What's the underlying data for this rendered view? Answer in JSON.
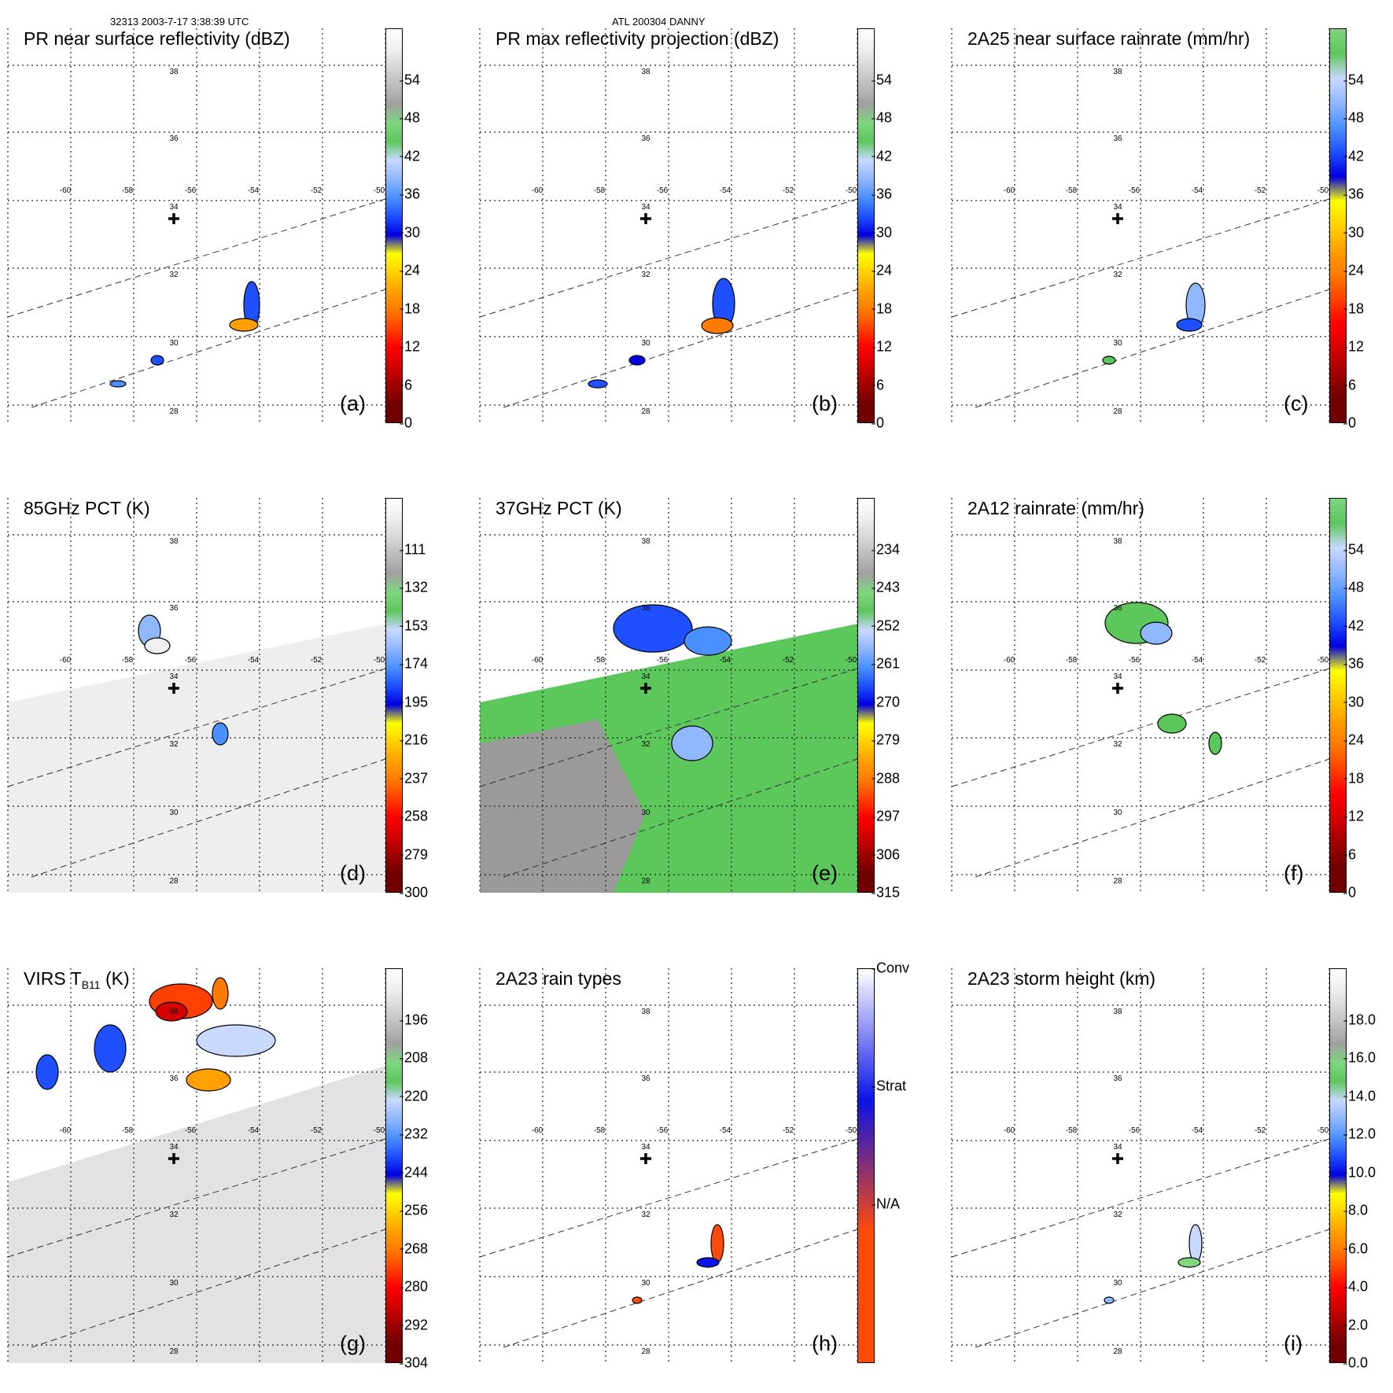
{
  "header": {
    "orbit_time": "32313 2003-7-17 3:38:39 UTC",
    "storm": "ATL 200304 DANNY"
  },
  "map": {
    "lon_labels": [
      "-60",
      "-58",
      "-56",
      "-54",
      "-52",
      "-50"
    ],
    "lat_labels": [
      "38",
      "36",
      "34",
      "32",
      "30",
      "28"
    ]
  },
  "panels": [
    {
      "label": "(a)",
      "title": "PR near surface reflectivity (dBZ)",
      "colorbar_ticks": [
        "54",
        "48",
        "42",
        "36",
        "30",
        "24",
        "18",
        "12",
        "6",
        "0"
      ],
      "colors": [
        "#ffffff",
        "#f0f0f0",
        "#d8d8d8",
        "#bdbdbd",
        "#a0a0a0",
        "#7fd67f",
        "#5cc85c",
        "#c8d8ff",
        "#8fb8ff",
        "#4a90ff",
        "#1e50ff",
        "#0000e0",
        "#ffff00",
        "#ffd000",
        "#ffa000",
        "#ff7a00",
        "#ff4000",
        "#ff0000",
        "#d40000",
        "#a00000",
        "#700000"
      ]
    },
    {
      "label": "(b)",
      "title": "PR max reflectivity projection (dBZ)",
      "colorbar_ticks": [
        "54",
        "48",
        "42",
        "36",
        "30",
        "24",
        "18",
        "12",
        "6",
        "0"
      ],
      "colors": [
        "#ffffff",
        "#f0f0f0",
        "#d8d8d8",
        "#bdbdbd",
        "#a0a0a0",
        "#7fd67f",
        "#5cc85c",
        "#c8d8ff",
        "#8fb8ff",
        "#4a90ff",
        "#1e50ff",
        "#0000e0",
        "#ffff00",
        "#ffd000",
        "#ffa000",
        "#ff7a00",
        "#ff4000",
        "#ff0000",
        "#d40000",
        "#a00000",
        "#700000"
      ]
    },
    {
      "label": "(c)",
      "title": "2A25 near surface rainrate (mm/hr)",
      "colorbar_ticks": [
        "54",
        "48",
        "42",
        "36",
        "30",
        "24",
        "18",
        "12",
        "6",
        "0"
      ],
      "colors": [
        "#7fd67f",
        "#5cc85c",
        "#c8d8ff",
        "#8fb8ff",
        "#4a90ff",
        "#1e50ff",
        "#0000e0",
        "#ffff00",
        "#ffd000",
        "#ffa000",
        "#ff7a00",
        "#ff4000",
        "#ff0000",
        "#d40000",
        "#a00000",
        "#700000"
      ]
    },
    {
      "label": "(d)",
      "title": "85GHz PCT (K)",
      "colorbar_ticks": [
        "111",
        "132",
        "153",
        "174",
        "195",
        "216",
        "237",
        "258",
        "279",
        "300"
      ],
      "colors": [
        "#ffffff",
        "#f0f0f0",
        "#d8d8d8",
        "#bdbdbd",
        "#a0a0a0",
        "#7fd67f",
        "#5cc85c",
        "#c8d8ff",
        "#8fb8ff",
        "#4a90ff",
        "#1e50ff",
        "#0000e0",
        "#ffff00",
        "#ffd000",
        "#ffa000",
        "#ff7a00",
        "#ff4000",
        "#ff0000",
        "#d40000",
        "#a00000",
        "#700000"
      ]
    },
    {
      "label": "(e)",
      "title": "37GHz PCT (K)",
      "colorbar_ticks": [
        "234",
        "243",
        "252",
        "261",
        "270",
        "279",
        "288",
        "297",
        "306",
        "315"
      ],
      "colors": [
        "#ffffff",
        "#f0f0f0",
        "#d8d8d8",
        "#bdbdbd",
        "#a0a0a0",
        "#7fd67f",
        "#5cc85c",
        "#c8d8ff",
        "#8fb8ff",
        "#4a90ff",
        "#1e50ff",
        "#0000e0",
        "#ffff00",
        "#ffd000",
        "#ffa000",
        "#ff7a00",
        "#ff4000",
        "#ff0000",
        "#d40000",
        "#a00000",
        "#700000"
      ]
    },
    {
      "label": "(f)",
      "title": "2A12 rainrate (mm/hr)",
      "colorbar_ticks": [
        "54",
        "48",
        "42",
        "36",
        "30",
        "24",
        "18",
        "12",
        "6",
        "0"
      ],
      "colors": [
        "#7fd67f",
        "#5cc85c",
        "#c8d8ff",
        "#8fb8ff",
        "#4a90ff",
        "#1e50ff",
        "#0000e0",
        "#ffff00",
        "#ffd000",
        "#ffa000",
        "#ff7a00",
        "#ff4000",
        "#ff0000",
        "#d40000",
        "#a00000",
        "#700000"
      ]
    },
    {
      "label": "(g)",
      "title_prefix": "VIRS T",
      "title_sub": "B11",
      "title_suffix": " (K)",
      "colorbar_ticks": [
        "196",
        "208",
        "220",
        "232",
        "244",
        "256",
        "268",
        "280",
        "292",
        "304"
      ],
      "colors": [
        "#ffffff",
        "#f0f0f0",
        "#d8d8d8",
        "#bdbdbd",
        "#a0a0a0",
        "#7fd67f",
        "#5cc85c",
        "#c8d8ff",
        "#8fb8ff",
        "#4a90ff",
        "#1e50ff",
        "#0000e0",
        "#ffff00",
        "#ffd000",
        "#ffa000",
        "#ff7a00",
        "#ff4000",
        "#ff0000",
        "#d40000",
        "#a00000",
        "#700000"
      ]
    },
    {
      "label": "(h)",
      "title": "2A23 rain types",
      "colorbar_ticks": [
        "Conv",
        "Strat",
        "N/A"
      ],
      "colors": [
        "#ffffff",
        "#0a14e6",
        "#ff4a0a"
      ]
    },
    {
      "label": "(i)",
      "title": "2A23 storm height (km)",
      "colorbar_ticks": [
        "18.0",
        "16.0",
        "14.0",
        "12.0",
        "10.0",
        "8.0",
        "6.0",
        "4.0",
        "2.0",
        "0.0"
      ],
      "colors": [
        "#ffffff",
        "#f0f0f0",
        "#d8d8d8",
        "#bdbdbd",
        "#a0a0a0",
        "#7fd67f",
        "#5cc85c",
        "#c8d8ff",
        "#8fb8ff",
        "#4a90ff",
        "#1e50ff",
        "#0000e0",
        "#ffff00",
        "#ffd000",
        "#ffa000",
        "#ff7a00",
        "#ff4000",
        "#ff0000",
        "#d40000",
        "#a00000",
        "#700000"
      ]
    }
  ]
}
